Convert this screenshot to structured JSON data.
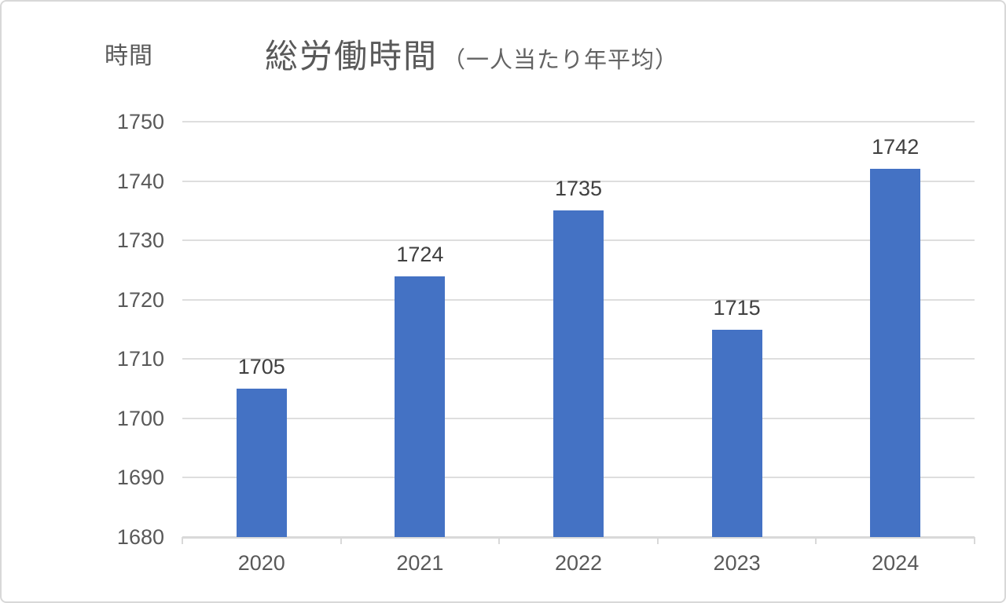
{
  "chart_data": {
    "type": "bar",
    "title": "総労働時間",
    "title_suffix": "（一人当たり年平均）",
    "unit_label": "時間",
    "categories": [
      "2020",
      "2021",
      "2022",
      "2023",
      "2024"
    ],
    "values": [
      1705,
      1724,
      1735,
      1715,
      1742
    ],
    "data_labels_visible": true,
    "xlabel": "",
    "ylabel": "時間",
    "ylim": [
      1680,
      1750
    ],
    "yticks": [
      1680,
      1690,
      1700,
      1710,
      1720,
      1730,
      1740,
      1750
    ],
    "grid": "horizontal",
    "legend": "none",
    "bar_color": "#4472C4",
    "gridline_color": "#DEDEDE",
    "axis_line_color": "#D9D9D9",
    "tick_label_color": "#595959",
    "data_label_color": "#404040",
    "title_color": "#595959"
  }
}
